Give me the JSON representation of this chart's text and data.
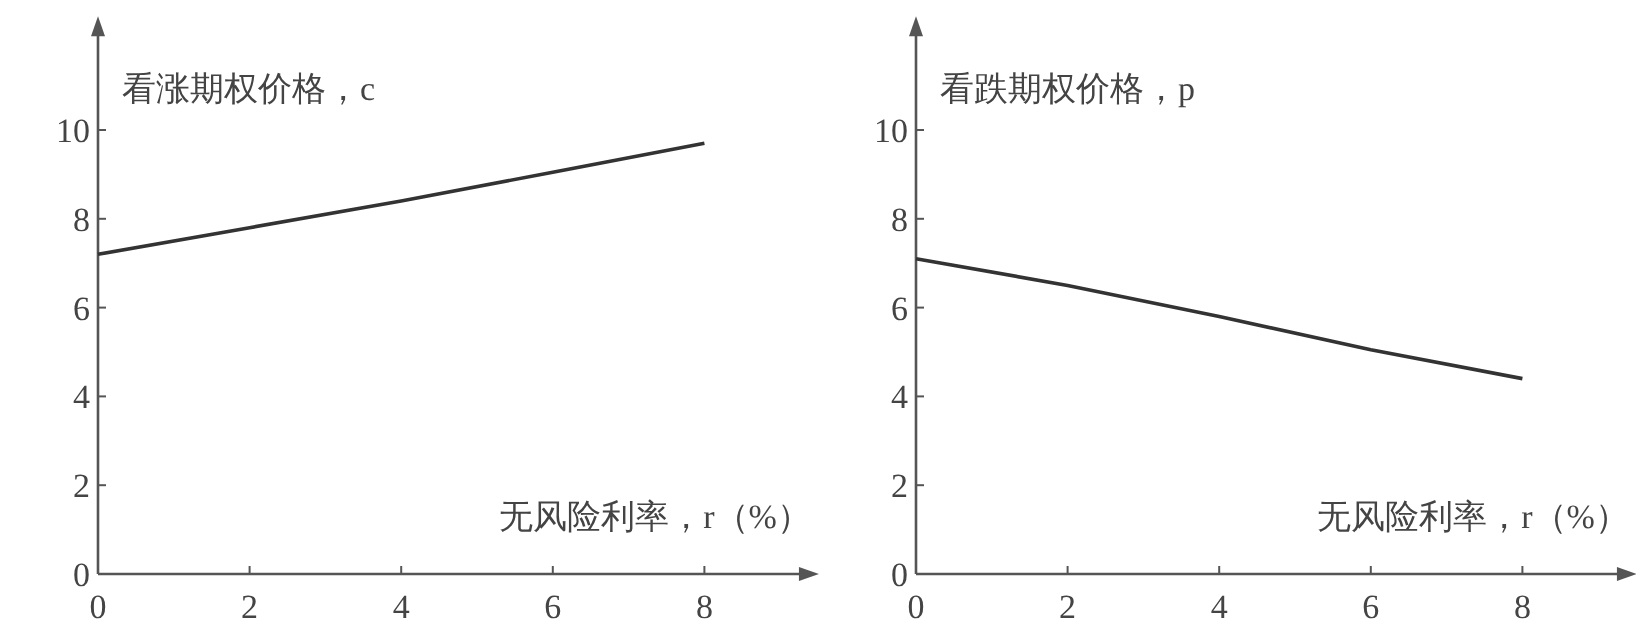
{
  "chart_data": [
    {
      "type": "line",
      "ylabel": "看涨期权价格，c",
      "xlabel": "无风险利率，r（%）",
      "x": [
        0,
        2,
        4,
        6,
        8
      ],
      "values": [
        7.2,
        7.8,
        8.4,
        9.05,
        9.7
      ],
      "color": "#333333",
      "xlim": [
        0,
        9.3
      ],
      "ylim": [
        0,
        12.2
      ],
      "xticks": [
        0,
        2,
        4,
        6,
        8
      ],
      "yticks": [
        0,
        2,
        4,
        6,
        8,
        10
      ]
    },
    {
      "type": "line",
      "ylabel": "看跌期权价格，p",
      "xlabel": "无风险利率，r（%）",
      "x": [
        0,
        2,
        4,
        6,
        8
      ],
      "values": [
        7.1,
        6.5,
        5.8,
        5.05,
        4.4
      ],
      "color": "#333333",
      "xlim": [
        0,
        9.3
      ],
      "ylim": [
        0,
        12.2
      ],
      "xticks": [
        0,
        2,
        4,
        6,
        8
      ],
      "yticks": [
        0,
        2,
        4,
        6,
        8,
        10
      ]
    }
  ]
}
